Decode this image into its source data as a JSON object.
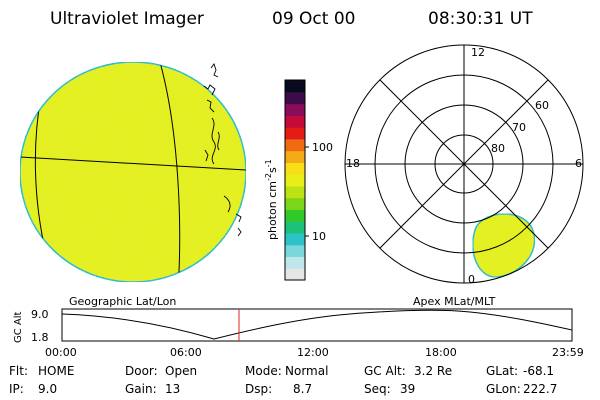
{
  "header": {
    "instrument": "Ultraviolet Imager",
    "date": "09 Oct 00",
    "time": "08:30:31 UT"
  },
  "colorbar": {
    "unit_label": "photon cm",
    "unit_exp1": "-2",
    "unit_mid": "s",
    "unit_exp2": "-1",
    "ticks": [
      {
        "label": "100",
        "value": 100
      },
      {
        "label": "10",
        "value": 10
      }
    ],
    "colors": [
      "#e6e6e6",
      "#bfe6ea",
      "#7ad8dd",
      "#2bc3c8",
      "#1ec17a",
      "#2fca2a",
      "#7bd619",
      "#bde213",
      "#e8ee18",
      "#f7de17",
      "#f4a916",
      "#ee6b13",
      "#e41c16",
      "#c40a37",
      "#8a0c5a",
      "#3c0c4a",
      "#0a0a1e"
    ]
  },
  "geo_panel": {
    "label": "Geographic Lat/Lon",
    "fill_color": "#e5f01a",
    "rim_color": "#21bcd2"
  },
  "polar_panel": {
    "label": "Apex MLat/MLT",
    "mlt_labels": {
      "top": "12",
      "left": "18",
      "right": "6",
      "bottom": "0"
    },
    "lat_labels": [
      "60",
      "70",
      "80"
    ],
    "blob_color": "#e5f01a",
    "blob_rim": "#21bcd2"
  },
  "altitude_plot": {
    "ylabel": "GC Alt",
    "yticks": [
      "9.0",
      "1.8"
    ],
    "xticks": [
      "00:00",
      "06:00",
      "12:00",
      "18:00",
      "23:59"
    ],
    "marker_color": "#e02020",
    "marker_time": "08:30"
  },
  "info": {
    "row1": {
      "flt_label": "Flt:",
      "flt_value": "HOME",
      "door_label": "Door:",
      "door_value": "Open",
      "mode_label": "Mode:",
      "mode_value": "Normal",
      "gcalt_label": "GC Alt:",
      "gcalt_value": "3.2 Re",
      "glat_label": "GLat:",
      "glat_value": "-68.1"
    },
    "row2": {
      "ip_label": "IP:",
      "ip_value": "9.0",
      "gain_label": "Gain:",
      "gain_value": "13",
      "dsp_label": "Dsp:",
      "dsp_value": "8.7",
      "seq_label": "Seq:",
      "seq_value": "39",
      "glon_label": "GLon:",
      "glon_value": "222.7"
    }
  }
}
